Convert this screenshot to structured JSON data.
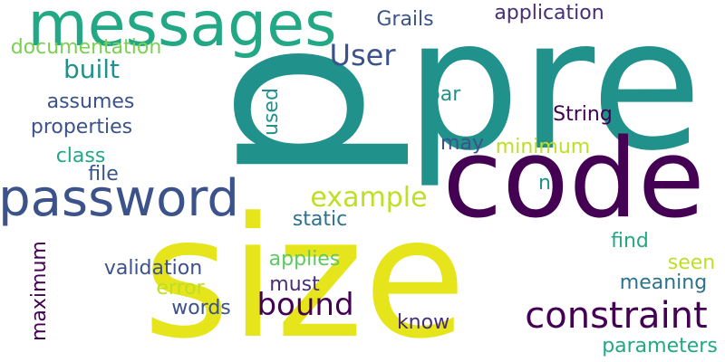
{
  "words": [
    {
      "text": "p",
      "color": "#21918c",
      "rotated": true
    },
    {
      "text": "pre",
      "color": "#21918c",
      "rotated": false
    },
    {
      "text": "size",
      "color": "#e6e51b",
      "rotated": false
    },
    {
      "text": "code",
      "color": "#440154",
      "rotated": false
    },
    {
      "text": "messages",
      "color": "#22a884",
      "rotated": false
    },
    {
      "text": "password",
      "color": "#3b528b",
      "rotated": false
    },
    {
      "text": "constraint",
      "color": "#440154",
      "rotated": false
    },
    {
      "text": "bound",
      "color": "#440154",
      "rotated": false
    },
    {
      "text": "example",
      "color": "#bddf26",
      "rotated": false
    },
    {
      "text": "User",
      "color": "#3b528b",
      "rotated": false
    },
    {
      "text": "built",
      "color": "#21918c",
      "rotated": false
    },
    {
      "text": "documentation",
      "color": "#7ad151",
      "rotated": false
    },
    {
      "text": "Grails",
      "color": "#3b528b",
      "rotated": false
    },
    {
      "text": "application",
      "color": "#472d7b",
      "rotated": false
    },
    {
      "text": "assumes",
      "color": "#3b528b",
      "rotated": false
    },
    {
      "text": "properties",
      "color": "#3b528b",
      "rotated": false
    },
    {
      "text": "class",
      "color": "#22a884",
      "rotated": false
    },
    {
      "text": "file",
      "color": "#3b528b",
      "rotated": false
    },
    {
      "text": "used",
      "color": "#21918c",
      "rotated": true
    },
    {
      "text": "bar",
      "color": "#21918c",
      "rotated": false
    },
    {
      "text": "String",
      "color": "#440154",
      "rotated": false
    },
    {
      "text": "may",
      "color": "#3b528b",
      "rotated": false
    },
    {
      "text": "minimum",
      "color": "#bddf26",
      "rotated": false
    },
    {
      "text": "n",
      "color": "#21918c",
      "rotated": false
    },
    {
      "text": "static",
      "color": "#2c728e",
      "rotated": false
    },
    {
      "text": "maximum",
      "color": "#440154",
      "rotated": true
    },
    {
      "text": "validation",
      "color": "#3b528b",
      "rotated": false
    },
    {
      "text": "applies",
      "color": "#5ec962",
      "rotated": false
    },
    {
      "text": "error",
      "color": "#bddf26",
      "rotated": false
    },
    {
      "text": "must",
      "color": "#472d7b",
      "rotated": false
    },
    {
      "text": "words",
      "color": "#3b528b",
      "rotated": false
    },
    {
      "text": "find",
      "color": "#22a884",
      "rotated": false
    },
    {
      "text": "seen",
      "color": "#bddf26",
      "rotated": false
    },
    {
      "text": "meaning",
      "color": "#2c728e",
      "rotated": false
    },
    {
      "text": "know",
      "color": "#472d7b",
      "rotated": false
    },
    {
      "text": "parameters",
      "color": "#22a884",
      "rotated": false
    }
  ]
}
